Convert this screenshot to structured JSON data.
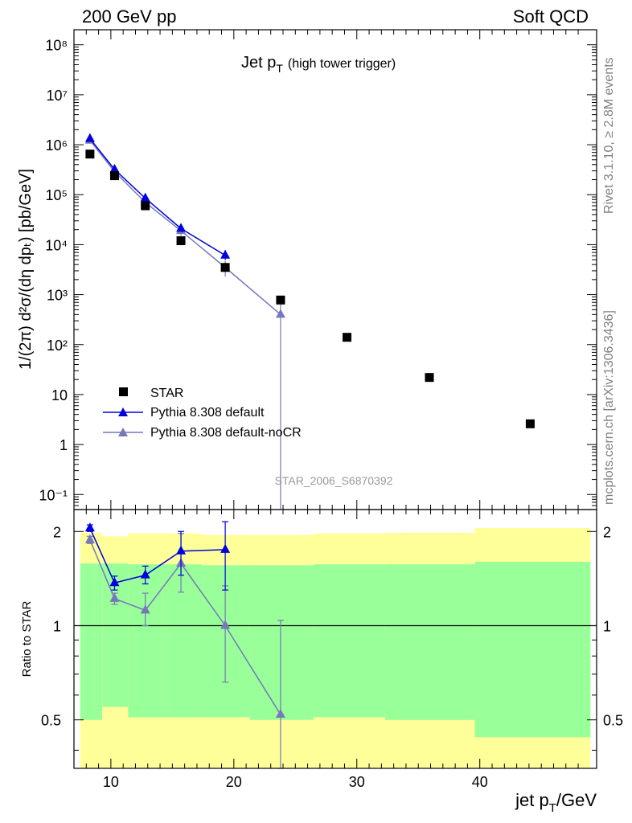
{
  "header": {
    "left": "200 GeV pp",
    "right": "Soft QCD"
  },
  "side_labels": {
    "rivet": "Rivet 3.1.10, ≥ 2.8M events",
    "mcplots": "mcplots.cern.ch [arXiv:1306.3436]"
  },
  "chart_data": {
    "type": "scatter",
    "title_main": "Jet p",
    "title_sub": "T",
    "title_extra": "(high tower trigger)",
    "analysis_id": "STAR_2006_S6870392",
    "xlabel_main": "jet p",
    "xlabel_sub": "T",
    "xlabel_tail": "/GeV",
    "ylabel": "1/(2π) d²σ/(dη dpₜ) [pb/GeV]",
    "ratio_ylabel": "Ratio to STAR",
    "xlim": [
      7,
      49.5
    ],
    "ylim": [
      0.05,
      200000000
    ],
    "yscale": "log",
    "ratio_ylim": [
      0.35,
      2.35
    ],
    "ratio_yscale": "log",
    "x_ticks": [
      "10",
      "20",
      "30",
      "40"
    ],
    "y_ticks": [
      "10⁻¹",
      "1",
      "10",
      "10²",
      "10³",
      "10⁴",
      "10⁵",
      "10⁶",
      "10⁷",
      "10⁸"
    ],
    "ratio_ticks": [
      "0.5",
      "1",
      "2"
    ],
    "legend": [
      "STAR",
      "Pythia 8.308 default",
      "Pythia 8.308 default-noCR"
    ],
    "colors": {
      "data": "#000000",
      "default": "#0000dd",
      "nocr": "#7777bb",
      "band_yellow": "#ffff99",
      "band_green": "#99ff99"
    },
    "series": [
      {
        "name": "STAR",
        "x": [
          8.3,
          10.3,
          12.8,
          15.7,
          19.3,
          23.8,
          29.2,
          35.9,
          44.1
        ],
        "y": [
          650000,
          240000,
          60000,
          12000,
          3500,
          780,
          140,
          22,
          2.6
        ]
      },
      {
        "name": "Pythia 8.308 default",
        "x": [
          8.3,
          10.3,
          12.8,
          15.7,
          19.3
        ],
        "y": [
          1320000,
          320000,
          85000,
          21000,
          6100
        ],
        "err_lo": [
          1200000,
          290000,
          76000,
          18000,
          4900
        ],
        "err_hi": [
          1450000,
          350000,
          94000,
          24000,
          7800
        ],
        "ratio": [
          2.05,
          1.37,
          1.45,
          1.73,
          1.75
        ],
        "ratio_err_lo": [
          2.0,
          1.3,
          1.36,
          1.45,
          1.3
        ],
        "ratio_err_hi": [
          2.1,
          1.44,
          1.55,
          2.0,
          2.15
        ]
      },
      {
        "name": "Pythia 8.308 default-noCR",
        "x": [
          8.3,
          10.3,
          12.8,
          15.7,
          19.3,
          23.8
        ],
        "y": [
          1220000,
          290000,
          70000,
          19000,
          3500,
          400
        ],
        "err_lo": [
          1110000,
          265000,
          62000,
          15000,
          2300,
          0.05
        ],
        "err_hi": [
          1340000,
          315000,
          78000,
          23000,
          4700,
          800
        ],
        "ratio": [
          1.88,
          1.22,
          1.12,
          1.58,
          1.0,
          0.52
        ],
        "ratio_err_lo": [
          1.83,
          1.17,
          1.0,
          1.28,
          0.66,
          0.35
        ],
        "ratio_err_hi": [
          1.93,
          1.27,
          1.27,
          1.97,
          1.34,
          1.04
        ]
      }
    ],
    "uncertainty_band": {
      "edges": [
        7.5,
        9.3,
        11.4,
        14.2,
        17.4,
        21.3,
        26.5,
        32.3,
        39.6,
        49.0
      ],
      "green_lo": [
        0.5,
        0.55,
        0.51,
        0.51,
        0.51,
        0.5,
        0.51,
        0.5,
        0.44
      ],
      "green_hi": [
        1.58,
        1.58,
        1.57,
        1.57,
        1.56,
        1.56,
        1.57,
        1.57,
        1.6
      ],
      "yellow_lo": [
        0.35,
        0.35,
        0.35,
        0.35,
        0.35,
        0.35,
        0.35,
        0.35,
        0.35
      ],
      "yellow_hi": [
        1.98,
        1.93,
        1.97,
        1.97,
        1.95,
        1.95,
        1.97,
        1.98,
        2.05
      ]
    }
  }
}
